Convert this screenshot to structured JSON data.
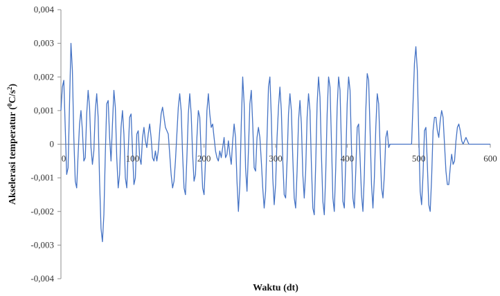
{
  "chart_data": {
    "type": "line",
    "xlabel": "Waktu (dt)",
    "ylabel_main": "Akselerasi temperatur (",
    "ylabel_sup1": "0",
    "ylabel_mid": "C/s",
    "ylabel_sup2": "2",
    "ylabel_end": ")",
    "xlim": [
      0,
      600
    ],
    "ylim": [
      -0.004,
      0.004
    ],
    "x_ticks": [
      0,
      100,
      200,
      300,
      400,
      500,
      600
    ],
    "x_tick_labels": [
      "0",
      "100",
      "200",
      "300",
      "400",
      "500",
      "600"
    ],
    "y_ticks": [
      0.004,
      0.003,
      0.002,
      0.001,
      0,
      -0.001,
      -0.002,
      -0.003,
      -0.004
    ],
    "y_tick_labels": [
      "0,004",
      "0,003",
      "0,002",
      "0,001",
      "0",
      "-0,001",
      "-0,002",
      "-0,003",
      "-0,004"
    ],
    "grid": false,
    "legend": "none",
    "line_color": "#4472C4",
    "series": [
      {
        "points": [
          [
            0,
            0.001
          ],
          [
            2,
            0.0017
          ],
          [
            4,
            0.0019
          ],
          [
            6,
            0.0005
          ],
          [
            8,
            -0.0009
          ],
          [
            10,
            -0.0007
          ],
          [
            12,
            0.0012
          ],
          [
            14,
            0.003
          ],
          [
            16,
            0.0022
          ],
          [
            18,
            0.0002
          ],
          [
            20,
            -0.0011
          ],
          [
            22,
            -0.0013
          ],
          [
            24,
            -0.0003
          ],
          [
            26,
            0.0006
          ],
          [
            28,
            0.001
          ],
          [
            30,
            0.0004
          ],
          [
            32,
            -0.0005
          ],
          [
            34,
            -0.0004
          ],
          [
            36,
            0.0009
          ],
          [
            38,
            0.0016
          ],
          [
            40,
            0.0011
          ],
          [
            42,
            -0.0001
          ],
          [
            44,
            -0.0006
          ],
          [
            46,
            -0.0002
          ],
          [
            48,
            0.001
          ],
          [
            50,
            0.0015
          ],
          [
            52,
            0.0008
          ],
          [
            54,
            -0.0011
          ],
          [
            56,
            -0.0025
          ],
          [
            58,
            -0.0029
          ],
          [
            60,
            -0.0021
          ],
          [
            62,
            -0.0003
          ],
          [
            64,
            0.0012
          ],
          [
            66,
            0.0013
          ],
          [
            68,
            0.0002
          ],
          [
            70,
            -0.0005
          ],
          [
            72,
            0.0006
          ],
          [
            74,
            0.0016
          ],
          [
            76,
            0.0011
          ],
          [
            78,
            -0.0004
          ],
          [
            80,
            -0.0013
          ],
          [
            82,
            -0.0009
          ],
          [
            84,
            0.0005
          ],
          [
            86,
            0.001
          ],
          [
            88,
            0.0003
          ],
          [
            90,
            -0.001
          ],
          [
            92,
            -0.0013
          ],
          [
            94,
            -0.0002
          ],
          [
            96,
            0.0008
          ],
          [
            98,
            0.0009
          ],
          [
            100,
            -0.0002
          ],
          [
            102,
            -0.0012
          ],
          [
            104,
            -0.001
          ],
          [
            106,
            0.0003
          ],
          [
            108,
            0.0004
          ],
          [
            110,
            -0.0004
          ],
          [
            112,
            -0.0006
          ],
          [
            114,
            0.0002
          ],
          [
            116,
            0.0005
          ],
          [
            118,
            0.0001
          ],
          [
            120,
            -0.0001
          ],
          [
            122,
            0.0003
          ],
          [
            124,
            0.0006
          ],
          [
            126,
            0.0002
          ],
          [
            128,
            -0.0004
          ],
          [
            130,
            -0.0005
          ],
          [
            132,
            -0.0002
          ],
          [
            134,
            -0.0005
          ],
          [
            136,
            -0.0002
          ],
          [
            138,
            0.0004
          ],
          [
            140,
            0.0009
          ],
          [
            142,
            0.0011
          ],
          [
            144,
            0.0008
          ],
          [
            146,
            0.0005
          ],
          [
            148,
            0.0004
          ],
          [
            150,
            0.0003
          ],
          [
            152,
            -0.0003
          ],
          [
            154,
            -0.0009
          ],
          [
            156,
            -0.0013
          ],
          [
            158,
            -0.0011
          ],
          [
            160,
            -0.0005
          ],
          [
            162,
            0.0003
          ],
          [
            164,
            0.0011
          ],
          [
            166,
            0.0015
          ],
          [
            168,
            0.001
          ],
          [
            170,
            -0.0003
          ],
          [
            172,
            -0.0013
          ],
          [
            174,
            -0.0015
          ],
          [
            176,
            -0.0004
          ],
          [
            178,
            0.0009
          ],
          [
            180,
            0.0015
          ],
          [
            182,
            0.0009
          ],
          [
            184,
            -0.0003
          ],
          [
            186,
            -0.0011
          ],
          [
            188,
            -0.0009
          ],
          [
            190,
            0.0002
          ],
          [
            192,
            0.001
          ],
          [
            194,
            0.0008
          ],
          [
            196,
            -0.0003
          ],
          [
            198,
            -0.0013
          ],
          [
            200,
            -0.0015
          ],
          [
            202,
            -0.0005
          ],
          [
            204,
            0.001
          ],
          [
            206,
            0.0015
          ],
          [
            208,
            0.0009
          ],
          [
            210,
            0.0005
          ],
          [
            212,
            0.0006
          ],
          [
            214,
            0.0002
          ],
          [
            216,
            -0.0002
          ],
          [
            218,
            -0.0004
          ],
          [
            220,
            -0.0005
          ],
          [
            222,
            -0.0002
          ],
          [
            224,
            -0.0004
          ],
          [
            226,
            -0.0001
          ],
          [
            228,
            0.0002
          ],
          [
            230,
            -0.0004
          ],
          [
            232,
            -0.0003
          ],
          [
            234,
            0.0001
          ],
          [
            236,
            -0.0003
          ],
          [
            238,
            -0.0006
          ],
          [
            240,
            0.0001
          ],
          [
            242,
            0.0006
          ],
          [
            244,
            0.0002
          ],
          [
            246,
            -0.0011
          ],
          [
            248,
            -0.002
          ],
          [
            250,
            -0.0012
          ],
          [
            252,
            0.0006
          ],
          [
            254,
            0.002
          ],
          [
            256,
            0.0012
          ],
          [
            258,
            -0.0007
          ],
          [
            260,
            -0.0014
          ],
          [
            262,
            -0.0002
          ],
          [
            264,
            0.0012
          ],
          [
            266,
            0.0016
          ],
          [
            268,
            0.0006
          ],
          [
            270,
            -0.0007
          ],
          [
            272,
            -0.0008
          ],
          [
            274,
            0.0002
          ],
          [
            276,
            0.0005
          ],
          [
            278,
            0.0002
          ],
          [
            280,
            -0.0005
          ],
          [
            282,
            -0.0013
          ],
          [
            284,
            -0.0019
          ],
          [
            286,
            -0.0014
          ],
          [
            288,
            0.0002
          ],
          [
            290,
            0.0017
          ],
          [
            292,
            0.002
          ],
          [
            294,
            0.0008
          ],
          [
            296,
            -0.001
          ],
          [
            298,
            -0.0018
          ],
          [
            300,
            -0.0012
          ],
          [
            302,
            0.0002
          ],
          [
            304,
            0.0011
          ],
          [
            306,
            0.0017
          ],
          [
            308,
            0.001
          ],
          [
            310,
            -0.0005
          ],
          [
            312,
            -0.0015
          ],
          [
            314,
            -0.0016
          ],
          [
            316,
            -0.0005
          ],
          [
            318,
            0.0009
          ],
          [
            320,
            0.0015
          ],
          [
            322,
            0.001
          ],
          [
            324,
            -0.0004
          ],
          [
            326,
            -0.0016
          ],
          [
            328,
            -0.0019
          ],
          [
            330,
            -0.0008
          ],
          [
            332,
            0.0007
          ],
          [
            334,
            0.0013
          ],
          [
            336,
            0.0006
          ],
          [
            338,
            -0.0009
          ],
          [
            340,
            -0.0016
          ],
          [
            342,
            -0.0008
          ],
          [
            344,
            0.0008
          ],
          [
            346,
            0.0015
          ],
          [
            348,
            0.001
          ],
          [
            350,
            -0.0006
          ],
          [
            352,
            -0.0019
          ],
          [
            354,
            -0.0021
          ],
          [
            356,
            -0.0006
          ],
          [
            358,
            0.0012
          ],
          [
            360,
            0.002
          ],
          [
            362,
            0.0014
          ],
          [
            364,
            -0.0003
          ],
          [
            366,
            -0.0017
          ],
          [
            368,
            -0.0021
          ],
          [
            370,
            -0.0009
          ],
          [
            372,
            0.0009
          ],
          [
            374,
            0.002
          ],
          [
            376,
            0.0017
          ],
          [
            378,
            0.0001
          ],
          [
            380,
            -0.0016
          ],
          [
            382,
            -0.002
          ],
          [
            384,
            -0.0007
          ],
          [
            386,
            0.0011
          ],
          [
            388,
            0.002
          ],
          [
            390,
            0.0016
          ],
          [
            392,
            -0.0001
          ],
          [
            394,
            -0.0017
          ],
          [
            396,
            -0.0019
          ],
          [
            398,
            -0.0005
          ],
          [
            400,
            0.0012
          ],
          [
            402,
            0.002
          ],
          [
            404,
            0.0016
          ],
          [
            406,
            -0.0001
          ],
          [
            408,
            -0.0016
          ],
          [
            410,
            -0.0019
          ],
          [
            412,
            -0.0008
          ],
          [
            414,
            0.0005
          ],
          [
            416,
            0.0006
          ],
          [
            418,
            -0.0004
          ],
          [
            420,
            -0.0015
          ],
          [
            422,
            -0.002
          ],
          [
            424,
            -0.0009
          ],
          [
            426,
            0.001
          ],
          [
            428,
            0.0021
          ],
          [
            430,
            0.0019
          ],
          [
            432,
            0.0004
          ],
          [
            434,
            -0.0012
          ],
          [
            436,
            -0.0019
          ],
          [
            438,
            -0.001
          ],
          [
            440,
            0.0005
          ],
          [
            442,
            0.0015
          ],
          [
            444,
            0.0012
          ],
          [
            446,
            -0.0001
          ],
          [
            448,
            -0.0013
          ],
          [
            450,
            -0.0016
          ],
          [
            452,
            -0.0009
          ],
          [
            454,
            0.0002
          ],
          [
            456,
            0.0004
          ],
          [
            458,
            -0.0001
          ],
          [
            460,
            0.0
          ],
          [
            462,
            0.0
          ],
          [
            464,
            0.0
          ],
          [
            466,
            0.0
          ],
          [
            468,
            0.0
          ],
          [
            470,
            0.0
          ],
          [
            472,
            0.0
          ],
          [
            474,
            0.0
          ],
          [
            476,
            0.0
          ],
          [
            478,
            0.0
          ],
          [
            480,
            0.0
          ],
          [
            482,
            0.0
          ],
          [
            484,
            0.0
          ],
          [
            486,
            0.0
          ],
          [
            488,
            0.0
          ],
          [
            490,
            0.0
          ],
          [
            492,
            0.0012
          ],
          [
            494,
            0.0024
          ],
          [
            496,
            0.0029
          ],
          [
            498,
            0.0022
          ],
          [
            500,
            0.0003
          ],
          [
            502,
            -0.0014
          ],
          [
            504,
            -0.0018
          ],
          [
            506,
            -0.0009
          ],
          [
            508,
            0.0004
          ],
          [
            510,
            0.0005
          ],
          [
            512,
            -0.0006
          ],
          [
            514,
            -0.0018
          ],
          [
            516,
            -0.002
          ],
          [
            518,
            -0.001
          ],
          [
            520,
            0.0004
          ],
          [
            522,
            0.0008
          ],
          [
            524,
            0.0008
          ],
          [
            526,
            0.0004
          ],
          [
            528,
            0.0002
          ],
          [
            530,
            0.0007
          ],
          [
            532,
            0.001
          ],
          [
            534,
            0.0008
          ],
          [
            536,
            0.0
          ],
          [
            538,
            -0.0008
          ],
          [
            540,
            -0.0012
          ],
          [
            542,
            -0.0012
          ],
          [
            544,
            -0.0007
          ],
          [
            546,
            -0.0003
          ],
          [
            548,
            -0.0006
          ],
          [
            550,
            -0.0005
          ],
          [
            552,
            0.0001
          ],
          [
            554,
            0.0005
          ],
          [
            556,
            0.0006
          ],
          [
            558,
            0.0004
          ],
          [
            560,
            0.0001
          ],
          [
            562,
            0.0
          ],
          [
            564,
            0.0001
          ],
          [
            566,
            0.0002
          ],
          [
            568,
            0.0001
          ],
          [
            570,
            0.0
          ],
          [
            572,
            0.0
          ],
          [
            574,
            0.0
          ],
          [
            576,
            0.0
          ],
          [
            578,
            0.0
          ],
          [
            580,
            0.0
          ],
          [
            582,
            0.0
          ],
          [
            584,
            0.0
          ],
          [
            586,
            0.0
          ],
          [
            588,
            0.0
          ],
          [
            590,
            0.0
          ],
          [
            592,
            0.0
          ],
          [
            594,
            0.0
          ],
          [
            596,
            0.0
          ],
          [
            598,
            0.0
          ],
          [
            600,
            0.0
          ]
        ]
      }
    ]
  }
}
